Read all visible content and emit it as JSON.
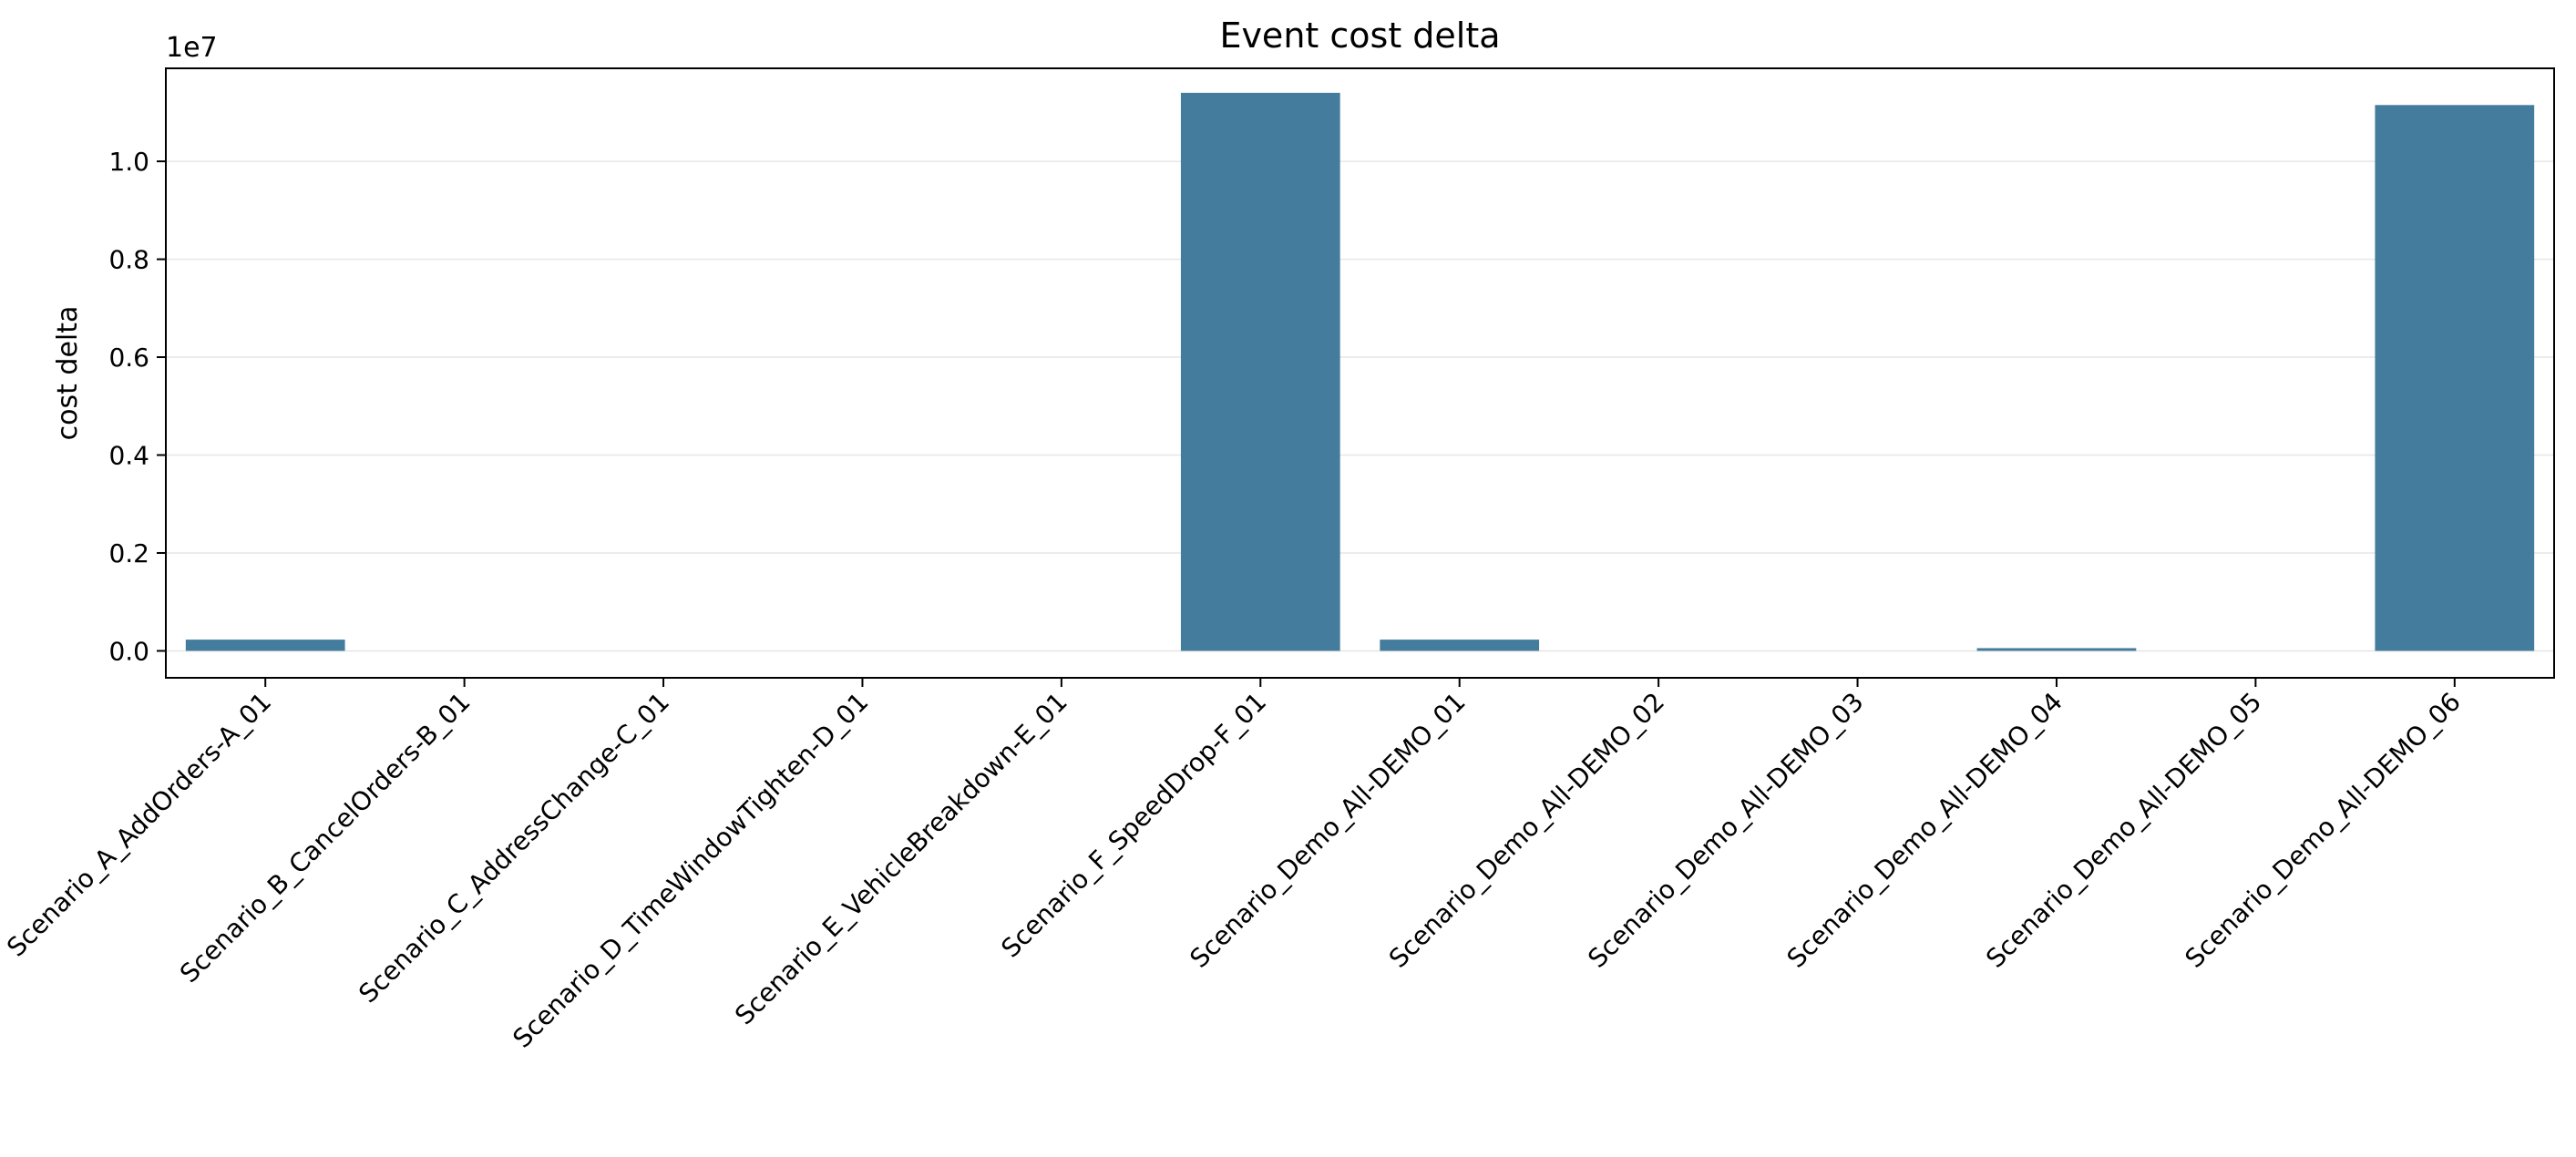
{
  "chart_data": {
    "type": "bar",
    "title": "Event cost delta",
    "xlabel": "",
    "ylabel": "cost delta",
    "y_offset_label": "1e7",
    "y_scale_factor": 10000000,
    "ylim": [
      -550000,
      11900000
    ],
    "yticks": [
      0,
      2000000,
      4000000,
      6000000,
      8000000,
      10000000
    ],
    "ytick_labels": [
      "0.0",
      "0.2",
      "0.4",
      "0.6",
      "0.8",
      "1.0"
    ],
    "grid": "y-axis, light",
    "legend": "none",
    "bar_color": "#447C9D",
    "categories": [
      "Scenario_A_AddOrders-A_01",
      "Scenario_B_CancelOrders-B_01",
      "Scenario_C_AddressChange-C_01",
      "Scenario_D_TimeWindowTighten-D_01",
      "Scenario_E_VehicleBreakdown-E_01",
      "Scenario_F_SpeedDrop-F_01",
      "Scenario_Demo_All-DEMO_01",
      "Scenario_Demo_All-DEMO_02",
      "Scenario_Demo_All-DEMO_03",
      "Scenario_Demo_All-DEMO_04",
      "Scenario_Demo_All-DEMO_05",
      "Scenario_Demo_All-DEMO_06"
    ],
    "values": [
      230000,
      0,
      0,
      0,
      0,
      11400000,
      230000,
      0,
      0,
      50000,
      0,
      11150000
    ]
  }
}
